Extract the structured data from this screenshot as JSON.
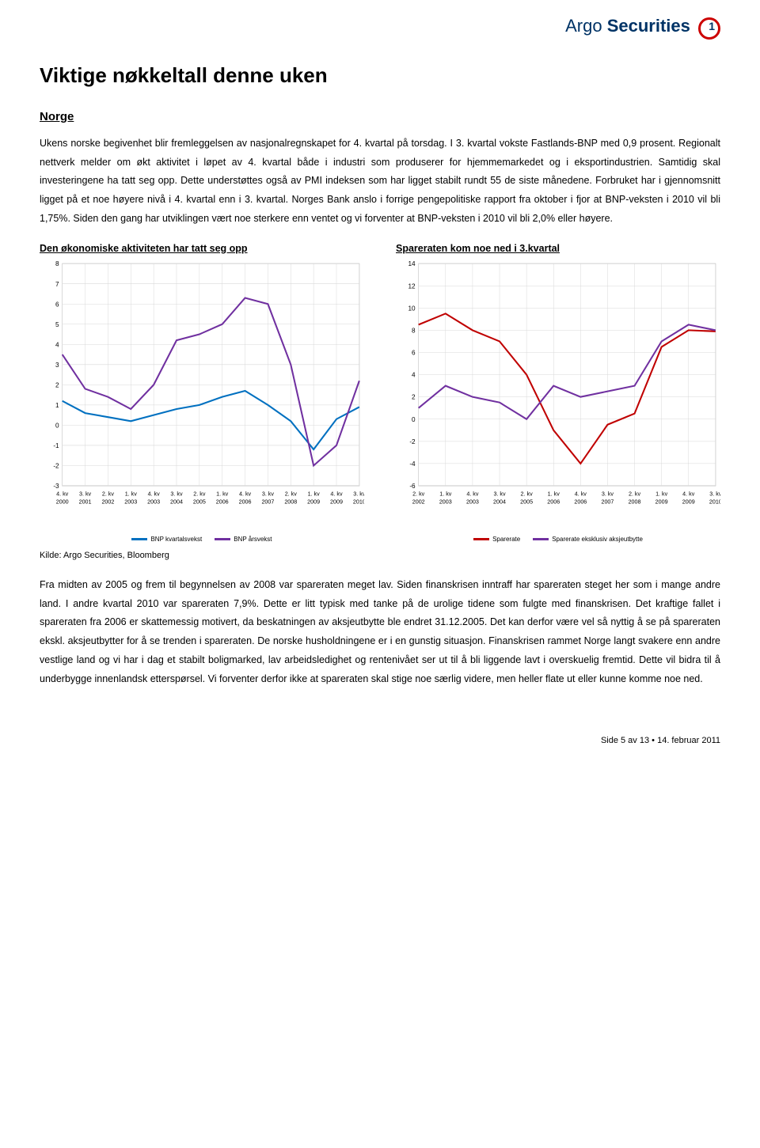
{
  "header": {
    "brand_plain": "Argo ",
    "brand_bold": "Securities"
  },
  "page_title": "Viktige nøkkeltall denne uken",
  "section_title": "Norge",
  "para1": "Ukens norske begivenhet blir fremleggelsen av nasjonalregnskapet for 4. kvartal på torsdag. I 3. kvartal vokste Fastlands-BNP med 0,9 prosent. Regionalt nettverk melder om økt aktivitet i løpet av 4. kvartal både i industri som produserer for hjemmemarkedet og i eksportindustrien. Samtidig skal investeringene ha tatt seg opp. Dette understøttes også av PMI indeksen som har ligget stabilt rundt 55 de siste månedene. Forbruket har i gjennomsnitt ligget på et noe høyere nivå i 4. kvartal enn i 3. kvartal. Norges Bank anslo i forrige pengepolitiske rapport fra oktober i fjor at BNP-veksten i 2010 vil bli 1,75%. Siden den gang har utviklingen vært noe sterkere enn ventet og vi forventer at BNP-veksten i 2010 vil bli 2,0% eller høyere.",
  "chart_left": {
    "title": "Den økonomiske aktiviteten har tatt seg opp",
    "type": "line",
    "ylim": [
      -3,
      8
    ],
    "yticks": [
      -3,
      -2,
      -1,
      0,
      1,
      2,
      3,
      4,
      5,
      6,
      7,
      8
    ],
    "x_labels": [
      "4. kv 2000",
      "3. kv 2001",
      "2. kv 2002",
      "1. kv 2003",
      "4. kv 2003",
      "3. kv 2004",
      "2. kv 2005",
      "1. kv 2006",
      "4. kv 2006",
      "3. kv 2007",
      "2. kv 2008",
      "1. kv 2009",
      "4. kv 2009",
      "3. kv 2010"
    ],
    "series": [
      {
        "name": "BNP kvartalsvekst",
        "color": "#0070c0",
        "width": 2,
        "values": [
          1.2,
          0.6,
          0.4,
          0.2,
          0.5,
          0.8,
          1.0,
          1.4,
          1.7,
          1.0,
          0.2,
          -1.2,
          0.3,
          0.9
        ]
      },
      {
        "name": "BNP årsvekst",
        "color": "#7030a0",
        "width": 2,
        "values": [
          3.5,
          1.8,
          1.4,
          0.8,
          2.0,
          4.2,
          4.5,
          5.0,
          6.3,
          6.0,
          3.0,
          -2.0,
          -1.0,
          2.2
        ]
      }
    ],
    "grid_color": "#d9d9d9",
    "background_color": "#ffffff",
    "tick_fontsize": 8,
    "axis_fontsize": 7
  },
  "chart_right": {
    "title": "Spareraten kom noe ned i 3.kvartal",
    "type": "line",
    "ylim": [
      -6,
      14
    ],
    "yticks": [
      -6,
      -4,
      -2,
      0,
      2,
      4,
      6,
      8,
      10,
      12,
      14
    ],
    "x_labels": [
      "2. kv 2002",
      "1. kv 2003",
      "4. kv 2003",
      "3. kv 2004",
      "2. kv 2005",
      "1. kv 2006",
      "4. kv 2006",
      "3. kv 2007",
      "2. kv 2008",
      "1. kv 2009",
      "4. kv 2009",
      "3. kv 2010"
    ],
    "series": [
      {
        "name": "Sparerate",
        "color": "#c00000",
        "width": 2,
        "values": [
          8.5,
          9.5,
          8.0,
          7.0,
          4.0,
          -1.0,
          -4.0,
          -0.5,
          0.5,
          6.5,
          8.0,
          7.9
        ]
      },
      {
        "name": "Sparerate eksklusiv aksjeutbytte",
        "color": "#7030a0",
        "width": 2,
        "values": [
          1.0,
          3.0,
          2.0,
          1.5,
          0.0,
          3.0,
          2.0,
          2.5,
          3.0,
          7.0,
          8.5,
          8.0
        ]
      }
    ],
    "grid_color": "#d9d9d9",
    "background_color": "#ffffff",
    "tick_fontsize": 8,
    "axis_fontsize": 7
  },
  "source": "Kilde: Argo Securities, Bloomberg",
  "para2": "Fra midten av 2005 og frem til begynnelsen av 2008 var spareraten meget lav. Siden finanskrisen inntraff har spareraten steget her som i mange andre land. I andre kvartal 2010 var spareraten 7,9%. Dette er litt typisk med tanke på de urolige tidene som fulgte med finanskrisen. Det kraftige fallet i spareraten fra 2006 er skattemessig motivert, da beskatningen av aksjeutbytte ble endret 31.12.2005. Det kan derfor være vel så nyttig å se på spareraten ekskl. aksjeutbytter for å se trenden i spareraten. De norske husholdningene er i en gunstig situasjon. Finanskrisen rammet Norge langt svakere enn andre vestlige land og vi har i dag et stabilt boligmarked, lav arbeidsledighet og rentenivået ser ut til å bli liggende lavt i overskuelig fremtid. Dette vil bidra til å underbygge innenlandsk etterspørsel. Vi forventer derfor ikke at spareraten skal stige noe særlig videre, men heller flate ut eller kunne komme noe ned.",
  "footer": {
    "page": "Side 5 av 13",
    "bullet": "•",
    "date": "14. februar 2011"
  }
}
